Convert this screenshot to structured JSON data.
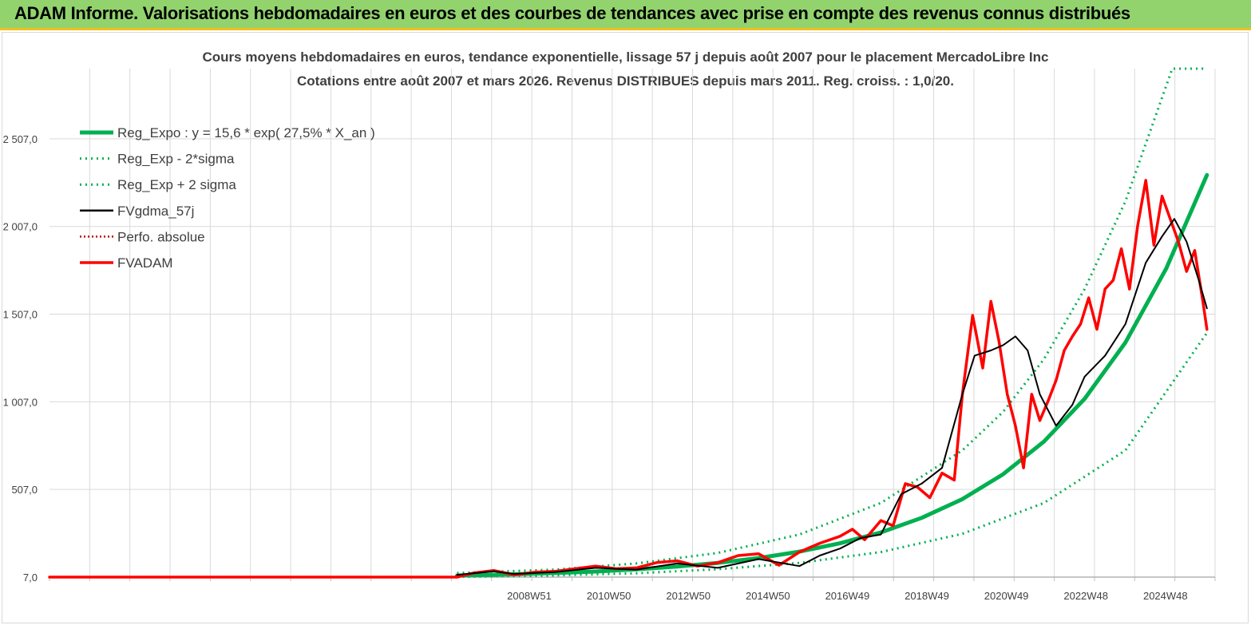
{
  "banner": {
    "title": "ADAM Informe. Valorisations hebdomadaires en euros et des courbes de tendances avec prise en compte des revenus connus distribués"
  },
  "chart_data": {
    "type": "line",
    "title": "Cours moyens hebdomadaires en euros, tendance exponentielle, lissage 57 j depuis août 2007 pour le placement MercadoLibre Inc",
    "subtitle": "Cotations entre août 2007 et mars 2026. Revenus DISTRIBUES depuis mars 2011. Reg. croiss. : 1,0/20.",
    "xlabel": "",
    "ylabel": "",
    "x_tick_labels": [
      "2008W51",
      "2010W50",
      "2012W50",
      "2014W50",
      "2016W49",
      "2018W49",
      "2020W49",
      "2022W48",
      "2024W48"
    ],
    "y_tick_labels": [
      "7,0",
      "507,0",
      "1 007,0",
      "1 507,0",
      "2 007,0",
      "2 507,0"
    ],
    "y_ticks": [
      7,
      507,
      1007,
      1507,
      2007,
      2507
    ],
    "ylim": [
      7,
      2907
    ],
    "xlim": [
      1997.6,
      2026.2
    ],
    "grid": true,
    "legend_position": "top-left",
    "colors": {
      "reg_expo": "#00b050",
      "sigma": "#00b050",
      "fvgdma": "#000000",
      "perfo": "#c00000",
      "fvadam": "#ff0000",
      "grid": "#d9d9d9"
    },
    "series": [
      {
        "name": "Reg_Expo : y = 15,6 * exp( 27,5% *  X_an )",
        "style": "solid-thick",
        "x": [
          2007.6,
          2009,
          2010,
          2011,
          2012,
          2013,
          2014,
          2015,
          2016,
          2017,
          2018,
          2019,
          2020,
          2021,
          2022,
          2023,
          2024,
          2025,
          2026.0
        ],
        "y": [
          15.6,
          23,
          30,
          39,
          51,
          67,
          88,
          116,
          152,
          200,
          262,
          345,
          452,
          594,
          780,
          1024,
          1345,
          1766,
          2300
        ]
      },
      {
        "name": "Reg_Exp - 2*sigma",
        "style": "dotted",
        "x": [
          2007.6,
          2010,
          2012,
          2014,
          2016,
          2018,
          2020,
          2022,
          2024,
          2026.0
        ],
        "y": [
          8,
          17,
          29,
          52,
          88,
          150,
          254,
          430,
          730,
          1400
        ]
      },
      {
        "name": "Reg_Exp + 2 sigma",
        "style": "dotted",
        "x": [
          2007.6,
          2010,
          2012,
          2014,
          2016,
          2018,
          2020,
          2021,
          2022,
          2023,
          2024,
          2025.15,
          2026.0
        ],
        "y": [
          30,
          50,
          85,
          145,
          250,
          430,
          730,
          950,
          1250,
          1650,
          2150,
          2907,
          2907
        ]
      },
      {
        "name": "FVgdma_57j",
        "style": "solid-thin",
        "x": [
          2007.6,
          2008.5,
          2009,
          2010,
          2011,
          2012,
          2013,
          2014,
          2015,
          2016,
          2016.5,
          2017,
          2017.5,
          2018,
          2018.5,
          2019,
          2019.5,
          2020,
          2020.3,
          2020.7,
          2021,
          2021.3,
          2021.6,
          2021.9,
          2022.3,
          2022.7,
          2023,
          2023.5,
          2024,
          2024.5,
          2024.9,
          2025.2,
          2025.5,
          2025.8,
          2026.0
        ],
        "y": [
          20,
          40,
          25,
          35,
          60,
          50,
          85,
          60,
          110,
          70,
          130,
          170,
          230,
          250,
          480,
          540,
          630,
          1050,
          1270,
          1300,
          1330,
          1380,
          1300,
          1050,
          870,
          990,
          1150,
          1270,
          1450,
          1800,
          1950,
          2050,
          1920,
          1700,
          1540
        ]
      },
      {
        "name": "Perfo. absolue",
        "style": "dotted",
        "x": [
          1997.6,
          2007.6
        ],
        "y": [
          7,
          7
        ]
      },
      {
        "name": "FVADAM",
        "style": "solid-thick",
        "x": [
          1997.6,
          2007.6,
          2008,
          2008.5,
          2009,
          2009.5,
          2010,
          2010.5,
          2011,
          2011.5,
          2012,
          2012.5,
          2013,
          2013.5,
          2014,
          2014.5,
          2015,
          2015.5,
          2016,
          2016.5,
          2017,
          2017.3,
          2017.6,
          2018,
          2018.3,
          2018.6,
          2018.9,
          2019.2,
          2019.5,
          2019.8,
          2020,
          2020.25,
          2020.5,
          2020.7,
          2020.9,
          2021.1,
          2021.3,
          2021.5,
          2021.7,
          2021.9,
          2022.1,
          2022.3,
          2022.5,
          2022.7,
          2022.9,
          2023.1,
          2023.3,
          2023.5,
          2023.7,
          2023.9,
          2024.1,
          2024.3,
          2024.5,
          2024.7,
          2024.9,
          2025.1,
          2025.3,
          2025.5,
          2025.7,
          2025.9,
          2026.0
        ],
        "y": [
          7,
          7,
          30,
          45,
          20,
          35,
          40,
          55,
          70,
          55,
          60,
          90,
          100,
          70,
          90,
          130,
          140,
          75,
          150,
          200,
          240,
          280,
          220,
          330,
          300,
          540,
          520,
          460,
          600,
          560,
          1050,
          1500,
          1200,
          1580,
          1350,
          1050,
          870,
          630,
          1050,
          900,
          1010,
          1130,
          1300,
          1380,
          1450,
          1600,
          1420,
          1650,
          1700,
          1880,
          1650,
          2010,
          2270,
          1900,
          2180,
          2050,
          1920,
          1750,
          1870,
          1580,
          1420
        ]
      }
    ]
  }
}
